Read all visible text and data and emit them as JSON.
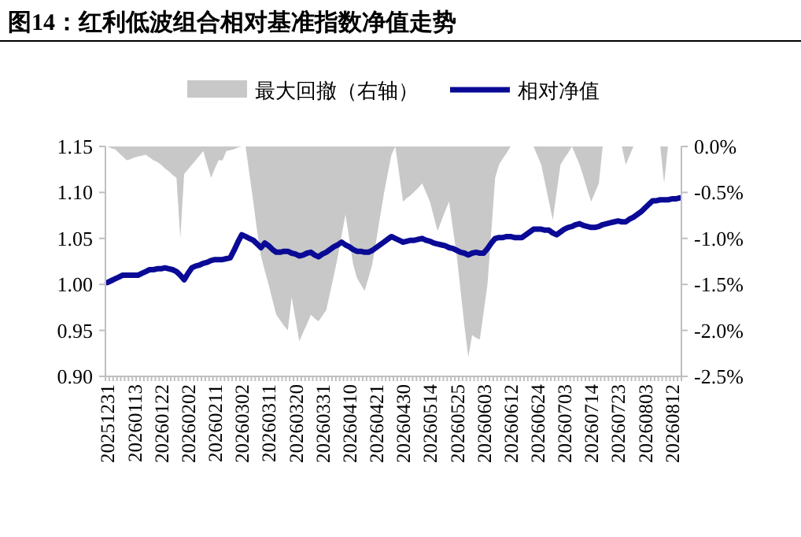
{
  "chart_data": {
    "type": "line",
    "title": "图14：红利低波组合相对基准指数净值走势",
    "categories": [
      "20251231",
      null,
      null,
      null,
      null,
      null,
      null,
      "20260113",
      null,
      null,
      null,
      null,
      null,
      null,
      "20260122",
      null,
      null,
      null,
      null,
      null,
      null,
      "20260202",
      null,
      null,
      null,
      null,
      null,
      null,
      "20260211",
      null,
      null,
      null,
      null,
      null,
      null,
      "20260302",
      null,
      null,
      null,
      null,
      null,
      null,
      "20260311",
      null,
      null,
      null,
      null,
      null,
      null,
      "20260320",
      null,
      null,
      null,
      null,
      null,
      null,
      "20260331",
      null,
      null,
      null,
      null,
      null,
      null,
      "20260410",
      null,
      null,
      null,
      null,
      null,
      null,
      "20260421",
      null,
      null,
      null,
      null,
      null,
      null,
      "20260430",
      null,
      null,
      null,
      null,
      null,
      null,
      "20260514",
      null,
      null,
      null,
      null,
      null,
      null,
      "20260525",
      null,
      null,
      null,
      null,
      null,
      null,
      "20260603",
      null,
      null,
      null,
      null,
      null,
      null,
      "20260612",
      null,
      null,
      null,
      null,
      null,
      null,
      "20260624",
      null,
      null,
      null,
      null,
      null,
      null,
      "20260703",
      null,
      null,
      null,
      null,
      null,
      null,
      "20260714",
      null,
      null,
      null,
      null,
      null,
      null,
      "20260723",
      null,
      null,
      null,
      null,
      null,
      null,
      "20260803",
      null,
      null,
      null,
      null,
      null,
      null,
      "20260812",
      null,
      null
    ],
    "series": [
      {
        "name": "最大回撤（右轴）",
        "type": "area",
        "axis": "y2",
        "color": "#c8c8c8",
        "values": [
          0,
          -0.02,
          -0.03,
          -0.07,
          -0.11,
          -0.15,
          -0.14,
          -0.12,
          -0.11,
          -0.1,
          -0.09,
          -0.12,
          -0.15,
          -0.17,
          -0.2,
          -0.24,
          -0.27,
          -0.31,
          -0.34,
          -1.0,
          -0.3,
          -0.25,
          -0.2,
          -0.15,
          -0.1,
          -0.05,
          -0.2,
          -0.34,
          -0.24,
          -0.15,
          -0.15,
          -0.05,
          -0.04,
          -0.03,
          -0.01,
          0,
          0,
          -0.3,
          -0.6,
          -0.92,
          -1.19,
          -1.35,
          -1.5,
          -1.67,
          -1.83,
          -1.89,
          -1.95,
          -2.0,
          -1.64,
          -1.88,
          -2.12,
          -2.02,
          -1.93,
          -1.83,
          -1.87,
          -1.9,
          -1.84,
          -1.78,
          -1.59,
          -1.4,
          -1.2,
          -0.97,
          -0.74,
          -1.0,
          -1.28,
          -1.43,
          -1.5,
          -1.57,
          -1.43,
          -1.28,
          -1.03,
          -0.77,
          -0.52,
          -0.3,
          -0.09,
          0,
          -0.3,
          -0.6,
          -0.56,
          -0.53,
          -0.49,
          -0.45,
          -0.4,
          -0.5,
          -0.6,
          -0.76,
          -0.92,
          -0.81,
          -0.7,
          -0.6,
          -0.9,
          -1.19,
          -1.57,
          -1.95,
          -2.29,
          -2.05,
          -2.08,
          -2.1,
          -1.8,
          -1.5,
          -0.92,
          -0.34,
          -0.2,
          -0.13,
          -0.07,
          0,
          0,
          0,
          0,
          0,
          0,
          0,
          -0.1,
          -0.2,
          -0.4,
          -0.6,
          -0.8,
          -0.5,
          -0.2,
          -0.13,
          -0.07,
          0,
          -0.1,
          -0.2,
          -0.33,
          -0.47,
          -0.6,
          -0.5,
          -0.4,
          0,
          0,
          0,
          0,
          0,
          0,
          -0.2,
          -0.1,
          0,
          0,
          0,
          0,
          0,
          0,
          0,
          0,
          -0.4,
          0,
          0,
          0,
          0
        ]
      },
      {
        "name": "相对净值",
        "type": "line",
        "color": "#0a0a96",
        "values": [
          1.002,
          1.004,
          1.006,
          1.008,
          1.01,
          1.01,
          1.01,
          1.01,
          1.01,
          1.012,
          1.014,
          1.016,
          1.016,
          1.017,
          1.017,
          1.018,
          1.017,
          1.016,
          1.014,
          1.01,
          1.005,
          1.012,
          1.018,
          1.02,
          1.021,
          1.023,
          1.024,
          1.026,
          1.027,
          1.027,
          1.027,
          1.028,
          1.029,
          1.037,
          1.046,
          1.054,
          1.052,
          1.05,
          1.048,
          1.044,
          1.04,
          1.045,
          1.042,
          1.038,
          1.035,
          1.035,
          1.036,
          1.036,
          1.034,
          1.033,
          1.031,
          1.032,
          1.034,
          1.035,
          1.032,
          1.03,
          1.033,
          1.035,
          1.038,
          1.041,
          1.043,
          1.046,
          1.043,
          1.041,
          1.038,
          1.036,
          1.036,
          1.035,
          1.035,
          1.037,
          1.04,
          1.043,
          1.046,
          1.049,
          1.052,
          1.05,
          1.048,
          1.046,
          1.047,
          1.048,
          1.048,
          1.049,
          1.05,
          1.048,
          1.047,
          1.045,
          1.044,
          1.043,
          1.042,
          1.04,
          1.039,
          1.037,
          1.035,
          1.034,
          1.032,
          1.034,
          1.035,
          1.034,
          1.034,
          1.039,
          1.045,
          1.05,
          1.051,
          1.051,
          1.052,
          1.052,
          1.051,
          1.051,
          1.051,
          1.054,
          1.057,
          1.06,
          1.06,
          1.06,
          1.059,
          1.059,
          1.056,
          1.054,
          1.057,
          1.06,
          1.062,
          1.063,
          1.065,
          1.066,
          1.064,
          1.063,
          1.062,
          1.062,
          1.063,
          1.065,
          1.066,
          1.067,
          1.068,
          1.069,
          1.068,
          1.068,
          1.071,
          1.073,
          1.076,
          1.079,
          1.083,
          1.087,
          1.091,
          1.091,
          1.092,
          1.092,
          1.092,
          1.093,
          1.093,
          1.094
        ]
      }
    ],
    "ylim": [
      0.9,
      1.15
    ],
    "yticks": [
      {
        "value": 0.9,
        "label": "0.90"
      },
      {
        "value": 0.95,
        "label": "0.95"
      },
      {
        "value": 1.0,
        "label": "1.00"
      },
      {
        "value": 1.05,
        "label": "1.05"
      },
      {
        "value": 1.1,
        "label": "1.10"
      },
      {
        "value": 1.15,
        "label": "1.15"
      }
    ],
    "y2lim": [
      -2.5,
      0
    ],
    "y2ticks": [
      {
        "value": -2.5,
        "label": "-2.5%"
      },
      {
        "value": -2.0,
        "label": "-2.0%"
      },
      {
        "value": -1.5,
        "label": "-1.5%"
      },
      {
        "value": -1.0,
        "label": "-1.0%"
      },
      {
        "value": -0.5,
        "label": "-0.5%"
      },
      {
        "value": 0,
        "label": "0.0%"
      }
    ],
    "legend": "top",
    "grid": false
  }
}
